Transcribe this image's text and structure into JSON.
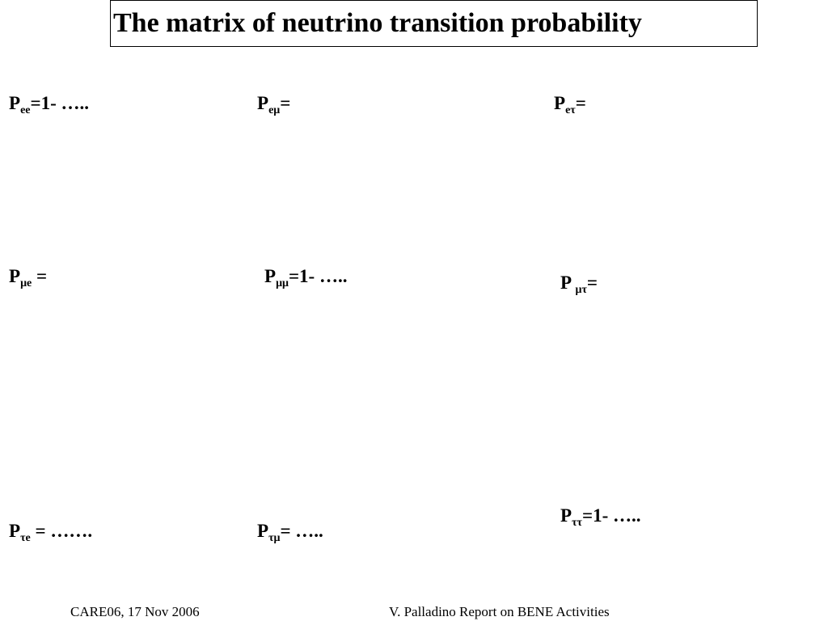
{
  "title": "The matrix of neutrino transition probability",
  "matrix": {
    "ee": {
      "symbol": "P",
      "sub": "ee",
      "rest": "=1- ….."
    },
    "emu": {
      "symbol": "P",
      "sub": "eμ",
      "rest": "="
    },
    "etau": {
      "symbol": "P",
      "sub": "eτ",
      "rest": "="
    },
    "mue": {
      "symbol": "P",
      "sub": "μe",
      "rest": " ="
    },
    "mumu": {
      "symbol": "P",
      "sub": "μμ",
      "rest": "=1- ….."
    },
    "mutau": {
      "symbol": "P ",
      "sub": "μτ",
      "rest": "="
    },
    "taue": {
      "symbol": "P",
      "sub": "τe",
      "rest": " = ……."
    },
    "taumu": {
      "symbol": "P",
      "sub": "τμ",
      "rest": "= ….."
    },
    "tautau": {
      "symbol": "P",
      "sub": "ττ",
      "rest": "=1- ….."
    }
  },
  "footer": {
    "left": "CARE06, 17 Nov 2006",
    "right": "V. Palladino Report on BENE Activities"
  }
}
